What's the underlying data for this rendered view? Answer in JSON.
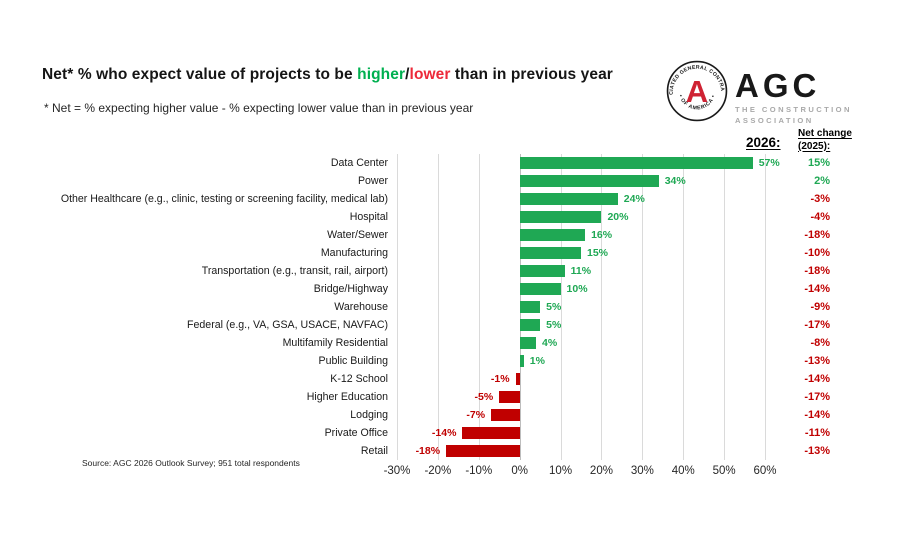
{
  "title": {
    "prefix": "Net* % who expect value of projects to be ",
    "higher": "higher",
    "slash": "/",
    "lower": "lower",
    "suffix": " than in previous year",
    "higher_color": "#00b050",
    "lower_color": "#ed2939"
  },
  "subtitle": "* Net = % expecting higher value - % expecting lower value than in previous year",
  "logo": {
    "wordmark": "AGC",
    "tagline1": "THE CONSTRUCTION",
    "tagline2": "ASSOCIATION",
    "seal_top": "ASSOCIATED GENERAL CONTRACTORS",
    "seal_bottom": "• OF AMERICA •",
    "seal_letter": "A"
  },
  "headers": {
    "year": "2026:",
    "net_change_line1": "Net change",
    "net_change_line2": "(2025):"
  },
  "source": "Source: AGC 2026 Outlook Survey; 951 total respondents",
  "chart_data": {
    "type": "bar",
    "orientation": "horizontal",
    "title": "Net* % who expect value of projects to be higher/lower than in previous year",
    "categories": [
      "Data Center",
      "Power",
      "Other Healthcare (e.g., clinic, testing or screening facility, medical lab)",
      "Hospital",
      "Water/Sewer",
      "Manufacturing",
      "Transportation (e.g., transit, rail, airport)",
      "Bridge/Highway",
      "Warehouse",
      "Federal (e.g., VA, GSA, USACE, NAVFAC)",
      "Multifamily Residential",
      "Public Building",
      "K-12 School",
      "Higher Education",
      "Lodging",
      "Private Office",
      "Retail"
    ],
    "series": [
      {
        "name": "2026",
        "values": [
          57,
          34,
          24,
          20,
          16,
          15,
          11,
          10,
          5,
          5,
          4,
          1,
          -1,
          -5,
          -7,
          -14,
          -18
        ],
        "labels": [
          "57%",
          "34%",
          "24%",
          "20%",
          "16%",
          "15%",
          "11%",
          "10%",
          "5%",
          "5%",
          "4%",
          "1%",
          "-1%",
          "-5%",
          "-7%",
          "-14%",
          "-18%"
        ]
      },
      {
        "name": "Net change (2025)",
        "values": [
          15,
          2,
          -3,
          -4,
          -18,
          -10,
          -18,
          -14,
          -9,
          -17,
          -8,
          -13,
          -14,
          -17,
          -14,
          -11,
          -13
        ],
        "labels": [
          "15%",
          "2%",
          "-3%",
          "-4%",
          "-18%",
          "-10%",
          "-18%",
          "-14%",
          "-9%",
          "-17%",
          "-8%",
          "-13%",
          "-14%",
          "-17%",
          "-14%",
          "-11%",
          "-13%"
        ]
      }
    ],
    "xlim": [
      -30,
      60
    ],
    "x_ticks": [
      {
        "value": -30,
        "label": "-30%"
      },
      {
        "value": -20,
        "label": "-20%"
      },
      {
        "value": -10,
        "label": "-10%"
      },
      {
        "value": 0,
        "label": "0%"
      },
      {
        "value": 10,
        "label": "10%"
      },
      {
        "value": 20,
        "label": "20%"
      },
      {
        "value": 30,
        "label": "30%"
      },
      {
        "value": 40,
        "label": "40%"
      },
      {
        "value": 50,
        "label": "50%"
      },
      {
        "value": 60,
        "label": "60%"
      }
    ],
    "grid": true,
    "legend_position": "none",
    "colors": {
      "positive": "#1fa854",
      "negative": "#c00000",
      "gridline": "#dadada",
      "zero_line": "#bdbdbd"
    }
  }
}
